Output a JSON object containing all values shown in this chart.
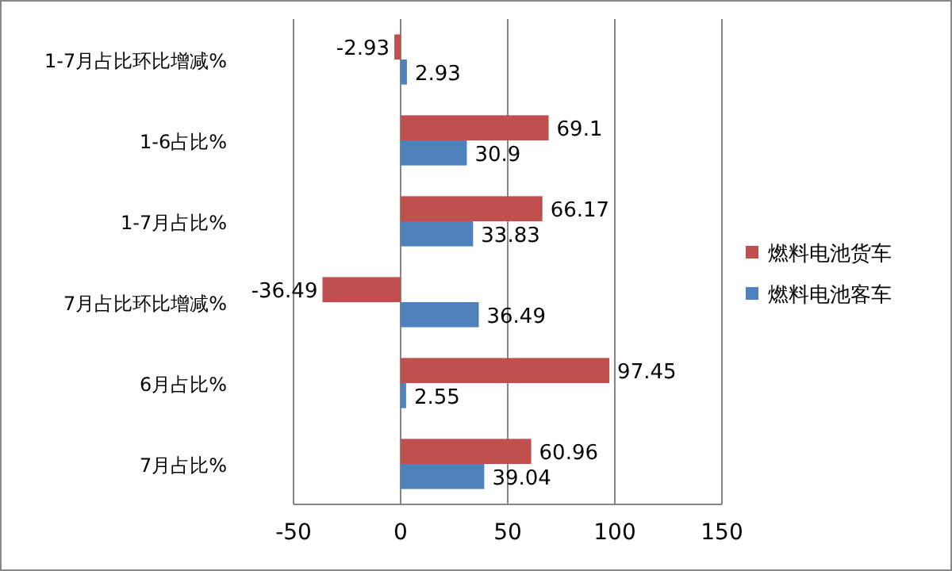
{
  "chart_data": {
    "type": "bar",
    "orientation": "horizontal",
    "categories": [
      "1-7月占比环比增减%",
      "1-6占比%",
      "1-7月占比%",
      "7月占比环比增减%",
      "6月占比%",
      "7月占比%"
    ],
    "series": [
      {
        "name": "燃料电池货车",
        "color": "#c0504d",
        "values": [
          -2.93,
          69.1,
          66.17,
          -36.49,
          97.45,
          60.96
        ]
      },
      {
        "name": "燃料电池客车",
        "color": "#4f81bd",
        "values": [
          2.93,
          30.9,
          33.83,
          36.49,
          2.55,
          39.04
        ]
      }
    ],
    "xlim": [
      -50,
      150
    ],
    "xticks": [
      -50,
      0,
      50,
      100,
      150
    ],
    "grid": "x",
    "legend": "right",
    "data_labels": true
  }
}
